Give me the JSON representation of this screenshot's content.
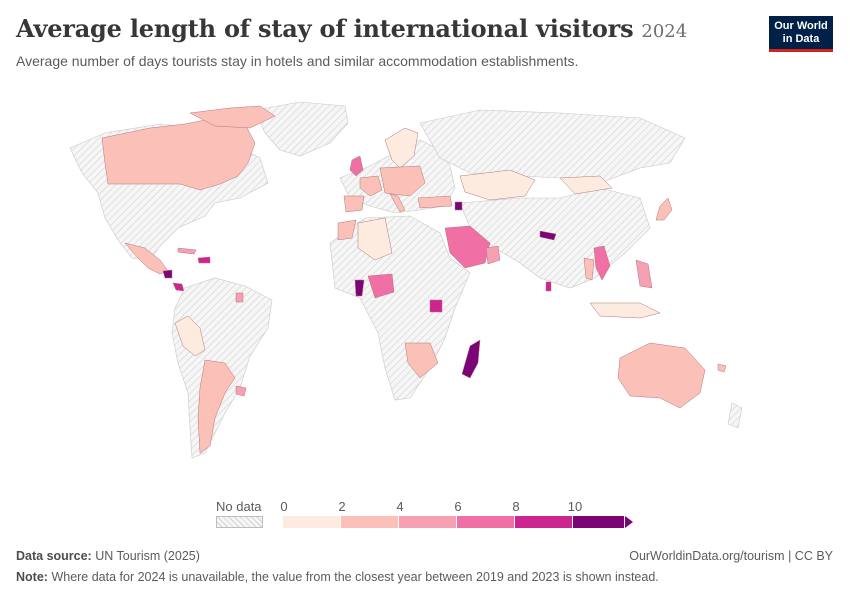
{
  "header": {
    "title": "Average length of stay of international visitors",
    "year": "2024",
    "subtitle": "Average number of days tourists stay in hotels and similar accommodation establishments."
  },
  "logo": {
    "line1": "Our World",
    "line2": "in Data"
  },
  "legend": {
    "no_data_label": "No data",
    "ticks": [
      "0",
      "2",
      "4",
      "6",
      "8",
      "10"
    ],
    "bin_colors": [
      "#fdebe0",
      "#fbc1b8",
      "#f79fb3",
      "#f06fa5",
      "#cc2590",
      "#7b0476"
    ],
    "no_data_pattern": "hatched-gray"
  },
  "map_colors": {
    "no_data": "#e6e6e6",
    "bin_0_2": "#fdebe0",
    "bin_2_4": "#fbc1b8",
    "bin_4_6": "#f79fb3",
    "bin_6_8": "#f06fa5",
    "bin_8_10": "#cc2590",
    "bin_10_plus": "#7b0476"
  },
  "footer": {
    "source_label": "Data source:",
    "source_value": "UN Tourism (2025)",
    "url": "OurWorldinData.org/tourism | CC BY",
    "note_label": "Note:",
    "note_value": "Where data for 2024 is unavailable, the value from the closest year between 2019 and 2023 is shown instead."
  }
}
